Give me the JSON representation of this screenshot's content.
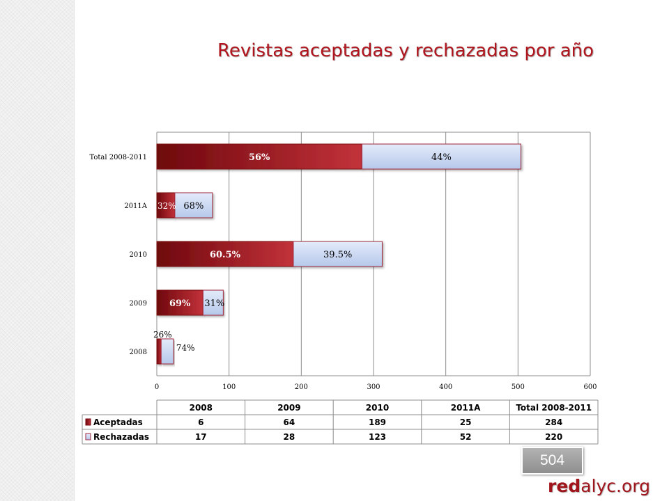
{
  "page": {
    "title": "Revistas aceptadas y rechazadas por año",
    "page_number": "504",
    "logo_red": "red",
    "logo_rest": "alyc.org"
  },
  "colors": {
    "aceptadas": "#9c0f17",
    "rechazadas": "#d3dff5",
    "title": "#b0151e"
  },
  "chart_data": {
    "type": "bar",
    "orientation": "horizontal",
    "stacked": true,
    "categories": [
      "Total 2008-2011",
      "2011A",
      "2010",
      "2009",
      "2008"
    ],
    "series": [
      {
        "name": "Aceptadas",
        "values": [
          284,
          25,
          189,
          64,
          6
        ],
        "labels": [
          "56%",
          "32%",
          "60.5%",
          "69%",
          "26%"
        ]
      },
      {
        "name": "Rechazadas",
        "values": [
          220,
          52,
          123,
          28,
          17
        ],
        "labels": [
          "44%",
          "68%",
          "39.5%",
          "31%",
          "74%"
        ]
      }
    ],
    "xlim": [
      0,
      600
    ],
    "xticks": [
      0,
      100,
      200,
      300,
      400,
      500,
      600
    ],
    "grid": true,
    "table": {
      "columns": [
        "2008",
        "2009",
        "2010",
        "2011A",
        "Total 2008-2011"
      ],
      "rows": [
        {
          "name": "Aceptadas",
          "values": [
            "6",
            "64",
            "189",
            "25",
            "284"
          ]
        },
        {
          "name": "Rechazadas",
          "values": [
            "17",
            "28",
            "123",
            "52",
            "220"
          ]
        }
      ]
    }
  }
}
